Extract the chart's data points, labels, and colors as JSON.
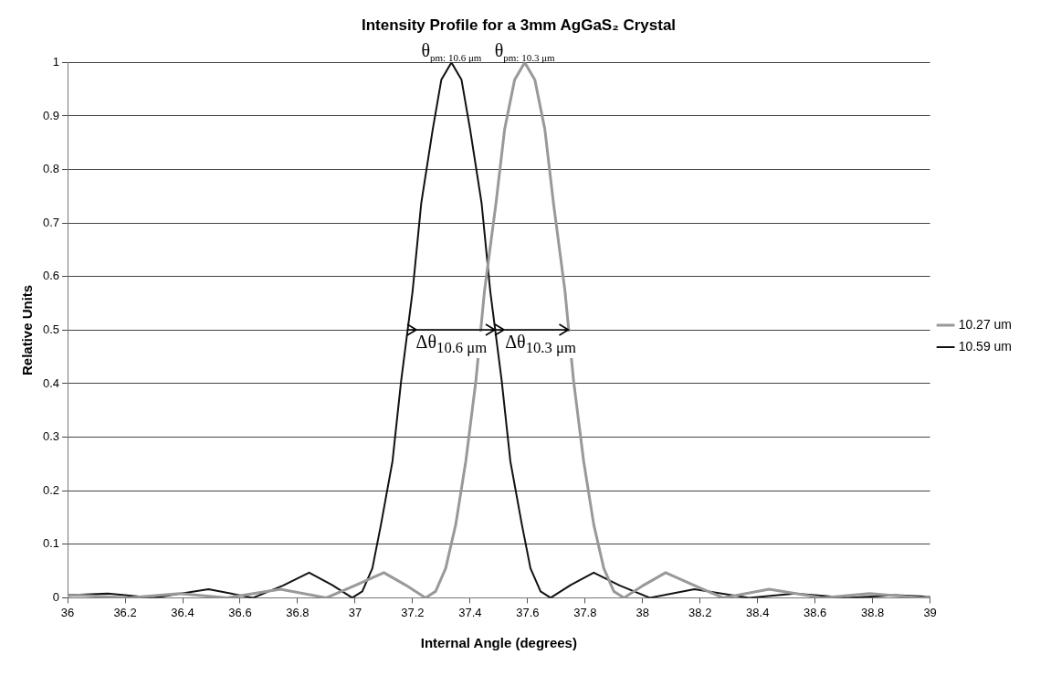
{
  "chart_data": {
    "type": "line",
    "title": "Intensity Profile for a 3mm AgGaS₂ Crystal",
    "xlabel": "Internal Angle (degrees)",
    "ylabel": "Relative Units",
    "xlim": [
      36,
      39
    ],
    "xticks": [
      36,
      36.2,
      36.4,
      36.6,
      36.8,
      37,
      37.2,
      37.4,
      37.6,
      37.8,
      38,
      38.2,
      38.4,
      38.6,
      38.8,
      39
    ],
    "ylim": [
      0,
      1
    ],
    "yticks": [
      0,
      0.1,
      0.2,
      0.3,
      0.4,
      0.5,
      0.6,
      0.7,
      0.8,
      0.9,
      1
    ],
    "grid": "y",
    "legend": "right",
    "marker": "none",
    "line_style": "solid",
    "series": [
      {
        "name": "10.27 um",
        "color": "#999999",
        "x": [
          36,
          36.04,
          36.21,
          36.39,
          36.555,
          36.74,
          36.9,
          37,
          37.1,
          37.175,
          37.245,
          37.28,
          37.315,
          37.35,
          37.385,
          37.42,
          37.45,
          37.49,
          37.52,
          37.555,
          37.59,
          37.625,
          37.66,
          37.69,
          37.73,
          37.76,
          37.795,
          37.83,
          37.865,
          37.9,
          37.935,
          38.005,
          38.08,
          38.18,
          38.28,
          38.44,
          38.625,
          38.79,
          38.97,
          39
        ],
        "values": [
          0.004,
          0.005,
          0,
          0.008,
          0,
          0.016,
          0,
          0.023,
          0.047,
          0.024,
          0,
          0.012,
          0.055,
          0.137,
          0.255,
          0.405,
          0.573,
          0.737,
          0.875,
          0.968,
          1,
          0.968,
          0.875,
          0.737,
          0.573,
          0.405,
          0.255,
          0.137,
          0.055,
          0.012,
          0,
          0.024,
          0.047,
          0.023,
          0,
          0.016,
          0,
          0.008,
          0,
          0.002
        ]
      },
      {
        "name": "10.59 um",
        "color": "#111111",
        "x": [
          36,
          36.14,
          36.3,
          36.49,
          36.645,
          36.75,
          36.84,
          36.92,
          36.99,
          37.025,
          37.06,
          37.09,
          37.13,
          37.16,
          37.2,
          37.23,
          37.27,
          37.3,
          37.335,
          37.37,
          37.4,
          37.44,
          37.47,
          37.51,
          37.54,
          37.58,
          37.61,
          37.645,
          37.68,
          37.75,
          37.83,
          37.92,
          38.025,
          38.18,
          38.37,
          38.53,
          38.715,
          38.88,
          39
        ],
        "values": [
          0.005,
          0.008,
          0,
          0.016,
          0,
          0.023,
          0.047,
          0.024,
          0,
          0.012,
          0.055,
          0.137,
          0.255,
          0.405,
          0.573,
          0.737,
          0.875,
          0.968,
          1,
          0.968,
          0.875,
          0.737,
          0.573,
          0.405,
          0.255,
          0.137,
          0.055,
          0.012,
          0,
          0.024,
          0.047,
          0.023,
          0,
          0.016,
          0,
          0.008,
          0,
          0.005,
          0.002
        ]
      }
    ],
    "annotations": [
      {
        "text": "θ$_{pm: 10.6 μm}$",
        "x": 37.335,
        "y": 1
      },
      {
        "text": "θ$_{pm: 10.3 μm}$",
        "x": 37.59,
        "y": 1
      },
      {
        "text": "Δθ$_{10.6 μm}$",
        "x": 37.18,
        "y": 0.5
      },
      {
        "text": "Δθ$_{10.3 μm}$",
        "x": 37.49,
        "y": 0.5
      }
    ]
  }
}
